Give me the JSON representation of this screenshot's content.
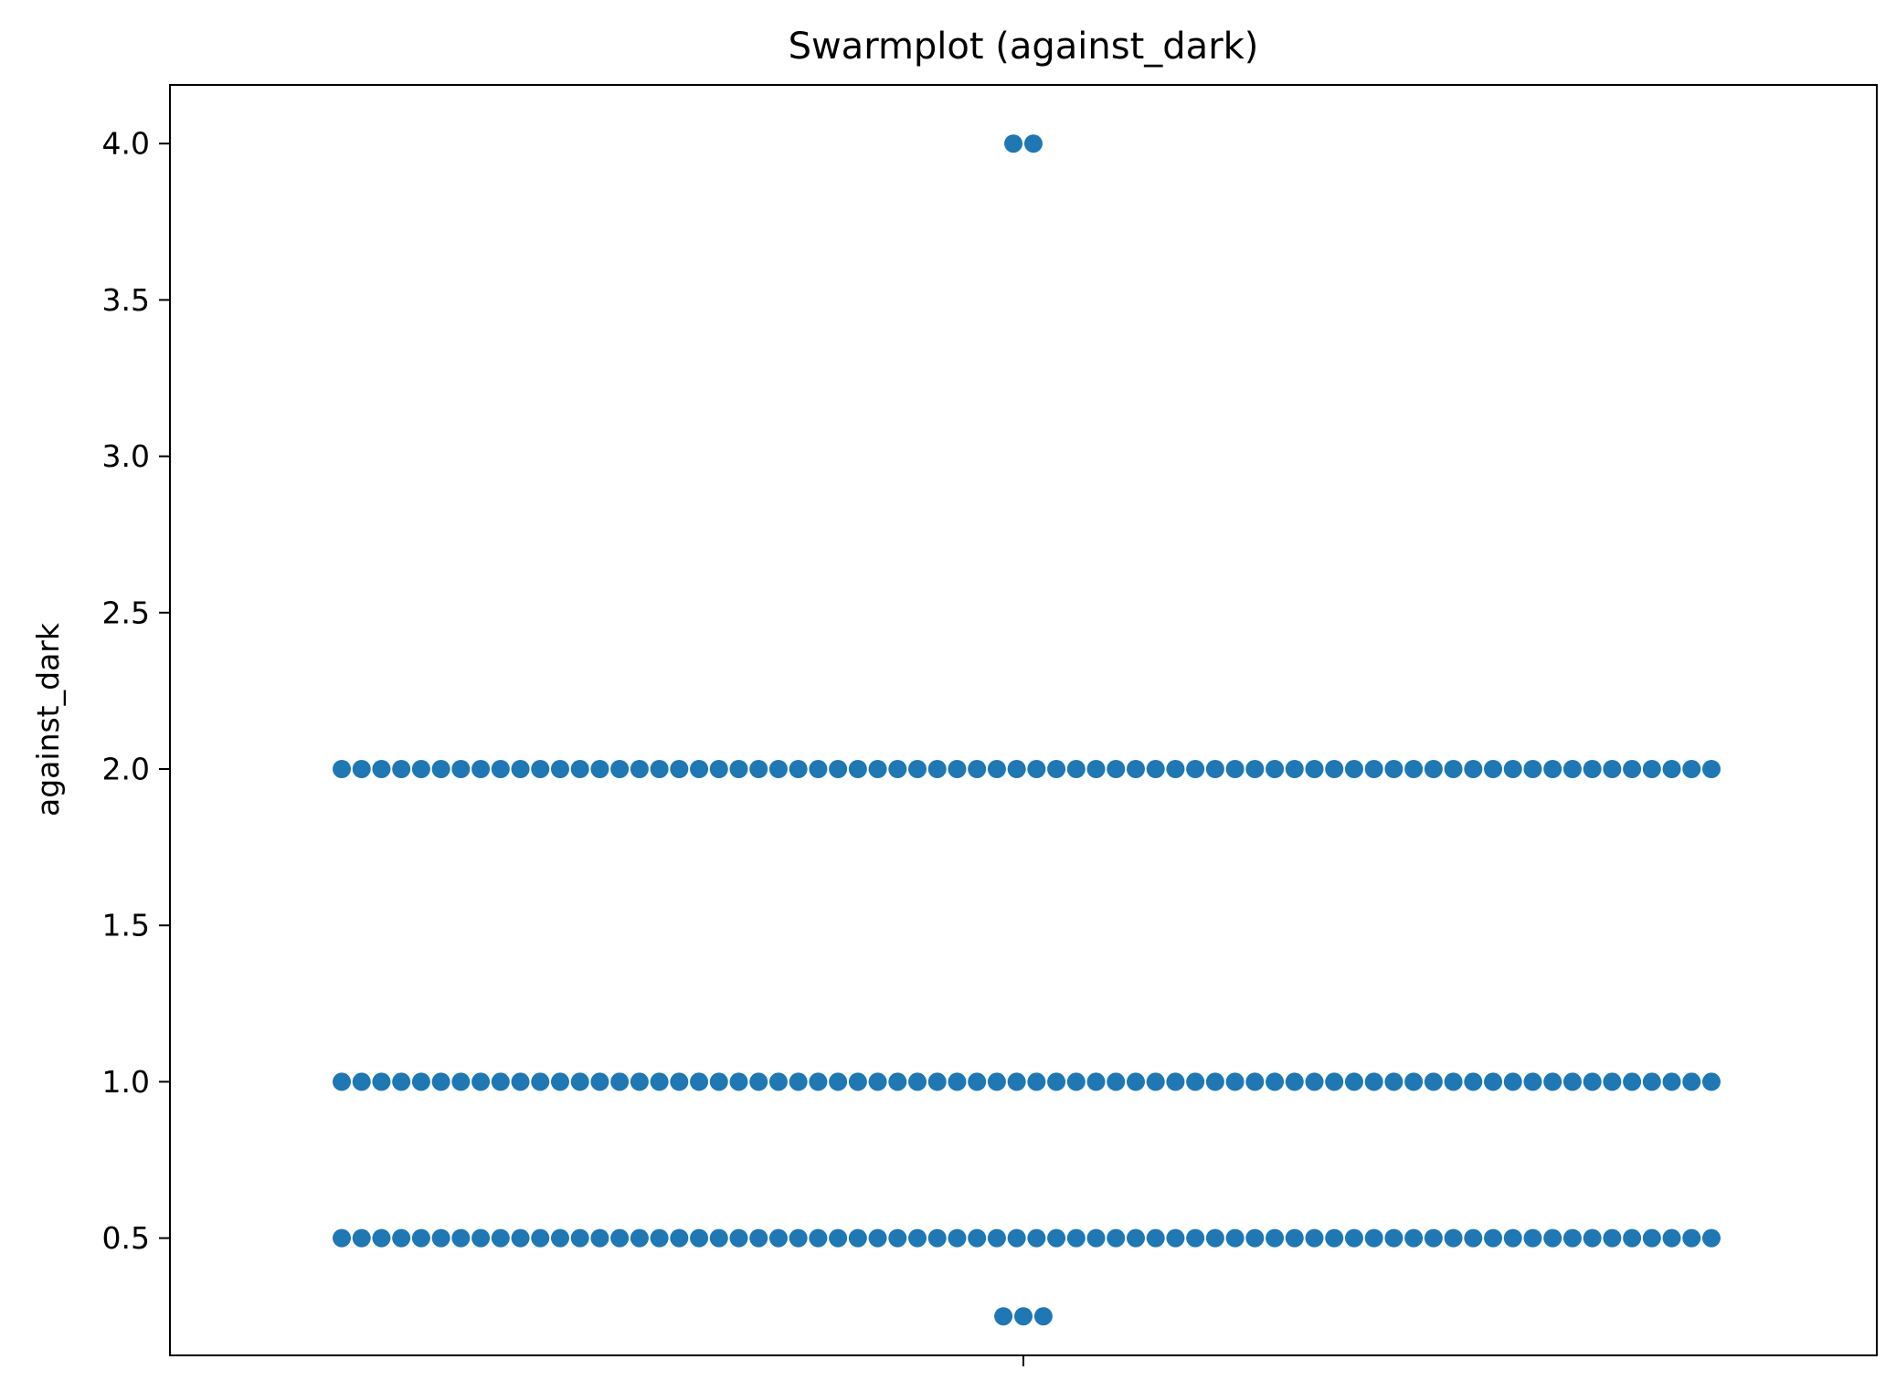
{
  "chart_data": {
    "type": "scatter",
    "subtype": "swarm",
    "title": "Swarmplot (against_dark)",
    "xlabel": "",
    "ylabel": "against_dark",
    "ylim": [
      0.125,
      4.1875
    ],
    "yticks": [
      0.5,
      1.0,
      1.5,
      2.0,
      2.5,
      3.0,
      3.5,
      4.0
    ],
    "ytick_labels": [
      "0.5",
      "1.0",
      "1.5",
      "2.0",
      "2.5",
      "3.0",
      "3.5",
      "4.0"
    ],
    "grid": false,
    "legend": "none",
    "marker_color": "#1f77b4",
    "groups": [
      {
        "value": 4.0,
        "count": 2
      },
      {
        "value": 2.0,
        "count": 70
      },
      {
        "value": 1.0,
        "count": 70
      },
      {
        "value": 0.5,
        "count": 70
      },
      {
        "value": 0.25,
        "count": 3
      }
    ]
  }
}
